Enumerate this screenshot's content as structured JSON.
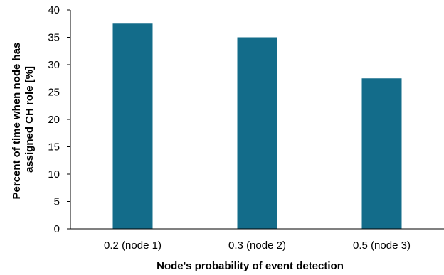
{
  "chart_data": {
    "type": "bar",
    "categories": [
      "0.2 (node 1)",
      "0.3 (node 2)",
      "0.5 (node 3)"
    ],
    "values": [
      37.5,
      35,
      27.5
    ],
    "title": "",
    "xlabel": "Node's probability of event detection",
    "ylabel_lines": [
      "Percent of time when  node has",
      "assigned CH role [%]"
    ],
    "ylim": [
      0,
      40
    ],
    "yticks": [
      0,
      5,
      10,
      15,
      20,
      25,
      30,
      35,
      40
    ],
    "grid": false,
    "legend": "none",
    "bar_color": "#136c8a"
  }
}
